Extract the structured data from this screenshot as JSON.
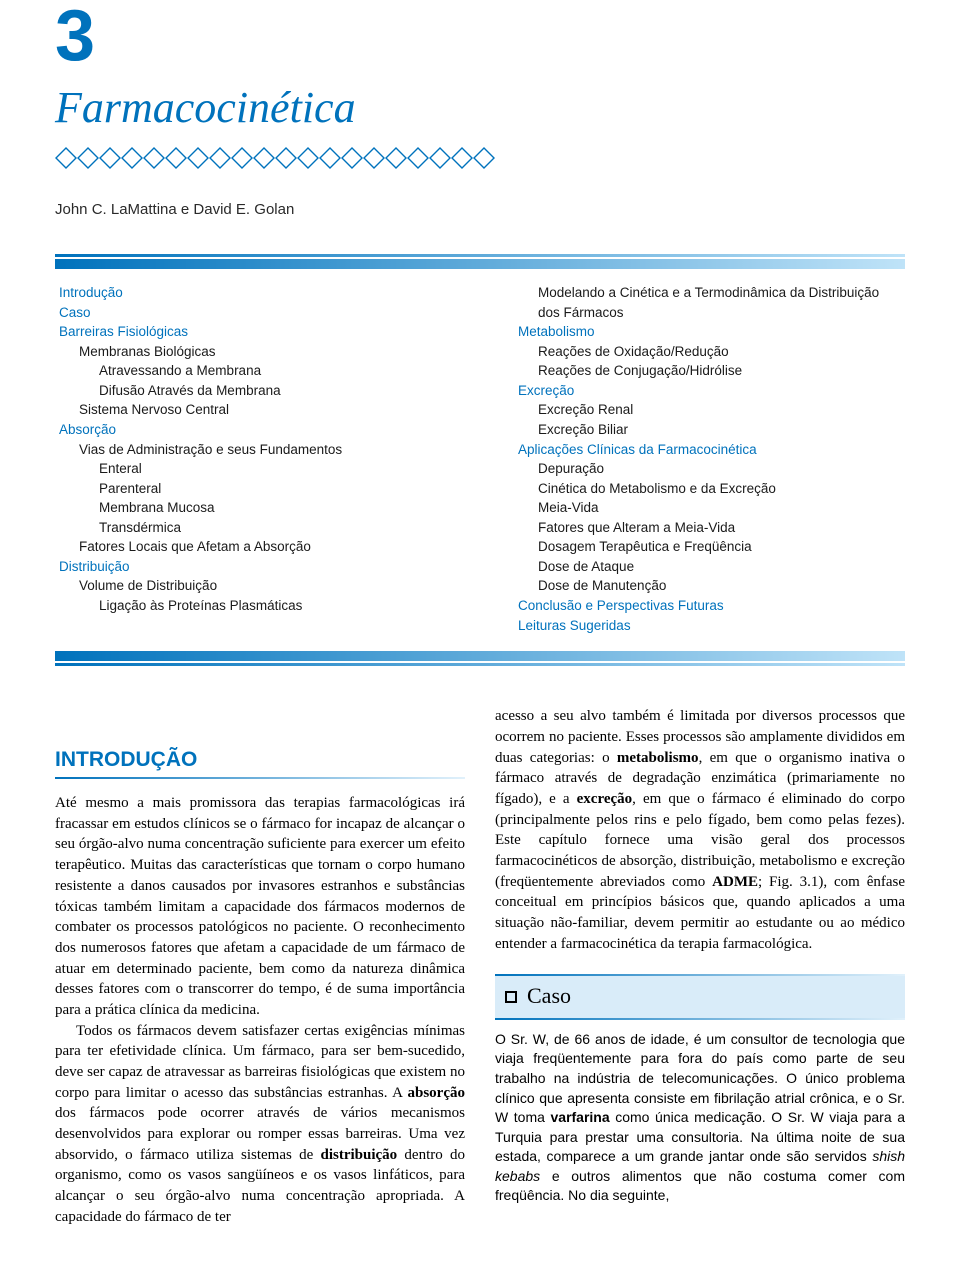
{
  "chapter": {
    "number": "3",
    "title": "Farmacocinética",
    "authors": "John C. LaMattina e David E. Golan"
  },
  "colors": {
    "accent": "#0072bc",
    "grad_end": "#bfe3f8",
    "caso_bg": "#d9ecf9"
  },
  "outline": {
    "left": [
      {
        "txt": "Introdução",
        "lvl": 0,
        "blue": true
      },
      {
        "txt": "Caso",
        "lvl": 0,
        "blue": true
      },
      {
        "txt": "Barreiras Fisiológicas",
        "lvl": 0,
        "blue": true
      },
      {
        "txt": "Membranas Biológicas",
        "lvl": 1,
        "blue": false
      },
      {
        "txt": "Atravessando a Membrana",
        "lvl": 2,
        "blue": false
      },
      {
        "txt": "Difusão Através da Membrana",
        "lvl": 2,
        "blue": false
      },
      {
        "txt": "Sistema Nervoso Central",
        "lvl": 1,
        "blue": false
      },
      {
        "txt": "Absorção",
        "lvl": 0,
        "blue": true
      },
      {
        "txt": "Vias de Administração e seus Fundamentos",
        "lvl": 1,
        "blue": false
      },
      {
        "txt": "Enteral",
        "lvl": 2,
        "blue": false
      },
      {
        "txt": "Parenteral",
        "lvl": 2,
        "blue": false
      },
      {
        "txt": "Membrana Mucosa",
        "lvl": 2,
        "blue": false
      },
      {
        "txt": "Transdérmica",
        "lvl": 2,
        "blue": false
      },
      {
        "txt": "Fatores Locais que Afetam a Absorção",
        "lvl": 1,
        "blue": false
      },
      {
        "txt": "Distribuição",
        "lvl": 0,
        "blue": true
      },
      {
        "txt": "Volume de Distribuição",
        "lvl": 1,
        "blue": false
      },
      {
        "txt": "Ligação às Proteínas Plasmáticas",
        "lvl": 2,
        "blue": false
      }
    ],
    "right": [
      {
        "txt": "Modelando a Cinética e a Termodinâmica da Distribuição dos Fármacos",
        "lvl": 2,
        "blue": false
      },
      {
        "txt": "Metabolismo",
        "lvl": 1,
        "blue": true
      },
      {
        "txt": "Reações de Oxidação/Redução",
        "lvl": 2,
        "blue": false
      },
      {
        "txt": "Reações de Conjugação/Hidrólise",
        "lvl": 2,
        "blue": false
      },
      {
        "txt": "Excreção",
        "lvl": 1,
        "blue": true
      },
      {
        "txt": "Excreção Renal",
        "lvl": 2,
        "blue": false
      },
      {
        "txt": "Excreção Biliar",
        "lvl": 2,
        "blue": false
      },
      {
        "txt": "Aplicações Clínicas da Farmacocinética",
        "lvl": 1,
        "blue": true
      },
      {
        "txt": "Depuração",
        "lvl": 2,
        "blue": false
      },
      {
        "txt": "Cinética do Metabolismo e da Excreção",
        "lvl": 2,
        "blue": false
      },
      {
        "txt": "Meia-Vida",
        "lvl": 2,
        "blue": false
      },
      {
        "txt": "Fatores que Alteram a Meia-Vida",
        "lvl": 2,
        "blue": false
      },
      {
        "txt": "Dosagem Terapêutica e Freqüência",
        "lvl": 2,
        "blue": false
      },
      {
        "txt": "Dose de Ataque",
        "lvl": 2,
        "blue": false
      },
      {
        "txt": "Dose de Manutenção",
        "lvl": 2,
        "blue": false
      },
      {
        "txt": "Conclusão e Perspectivas Futuras",
        "lvl": 1,
        "blue": true
      },
      {
        "txt": "Leituras Sugeridas",
        "lvl": 1,
        "blue": true
      }
    ]
  },
  "intro_heading": "INTRODUÇÃO",
  "body": {
    "p1": "Até mesmo a mais promissora das terapias farmacológicas irá fracassar em estudos clínicos se o fármaco for incapaz de alcançar o seu órgão-alvo numa concentração suficiente para exercer um efeito terapêutico. Muitas das características que tornam o corpo humano resistente a danos causados por invasores estranhos e substâncias tóxicas também limitam a capacidade dos fármacos modernos de combater os processos patológicos no paciente. O reconhecimento dos numerosos fatores que afetam a capacidade de um fármaco de atuar em determinado paciente, bem como da natureza dinâmica desses fatores com o transcorrer do tempo, é de suma importância para a prática clínica da medicina.",
    "p2": "Todos os fármacos devem satisfazer certas exigências mínimas para ter efetividade clínica. Um fármaco, para ser bem-sucedido, deve ser capaz de atravessar as barreiras fisiológicas que existem no corpo para limitar o acesso das substâncias estranhas. A absorção dos fármacos pode ocorrer através de vários mecanismos desenvolvidos para explorar ou romper essas barreiras. Uma vez absorvido, o fármaco utiliza sistemas de distribuição dentro do organismo, como os vasos sangüíneos e os vasos linfáticos, para alcançar o seu órgão-alvo numa concentração apropriada. A capacidade do fármaco de ter",
    "p3": "acesso a seu alvo também é limitada por diversos processos que ocorrem no paciente. Esses processos são amplamente divididos em duas categorias: o metabolismo, em que o organismo inativa o fármaco através de degradação enzimática (primariamente no fígado), e a excreção, em que o fármaco é eliminado do corpo (principalmente pelos rins e pelo fígado, bem como pelas fezes). Este capítulo fornece uma visão geral dos processos farmacocinéticos de absorção, distribuição, metabolismo e excreção (freqüentemente abreviados como ADME; Fig. 3.1), com ênfase conceitual em princípios básicos que, quando aplicados a uma situação não-familiar, devem permitir ao estudante ou ao médico entender a farmacocinética da terapia farmacológica."
  },
  "caso": {
    "label": "Caso",
    "text": "O Sr. W, de 66 anos de idade, é um consultor de tecnologia que viaja freqüentemente para fora do país como parte de seu trabalho na indústria de telecomunicações. O único problema clínico que apresenta consiste em fibrilação atrial crônica, e o Sr. W toma varfarina como única medicação. O Sr. W viaja para a Turquia para prestar uma consultoria. Na última noite de sua estada, comparece a um grande jantar onde são servidos shish kebabs e outros alimentos que não costuma comer com freqüência. No dia seguinte,"
  }
}
